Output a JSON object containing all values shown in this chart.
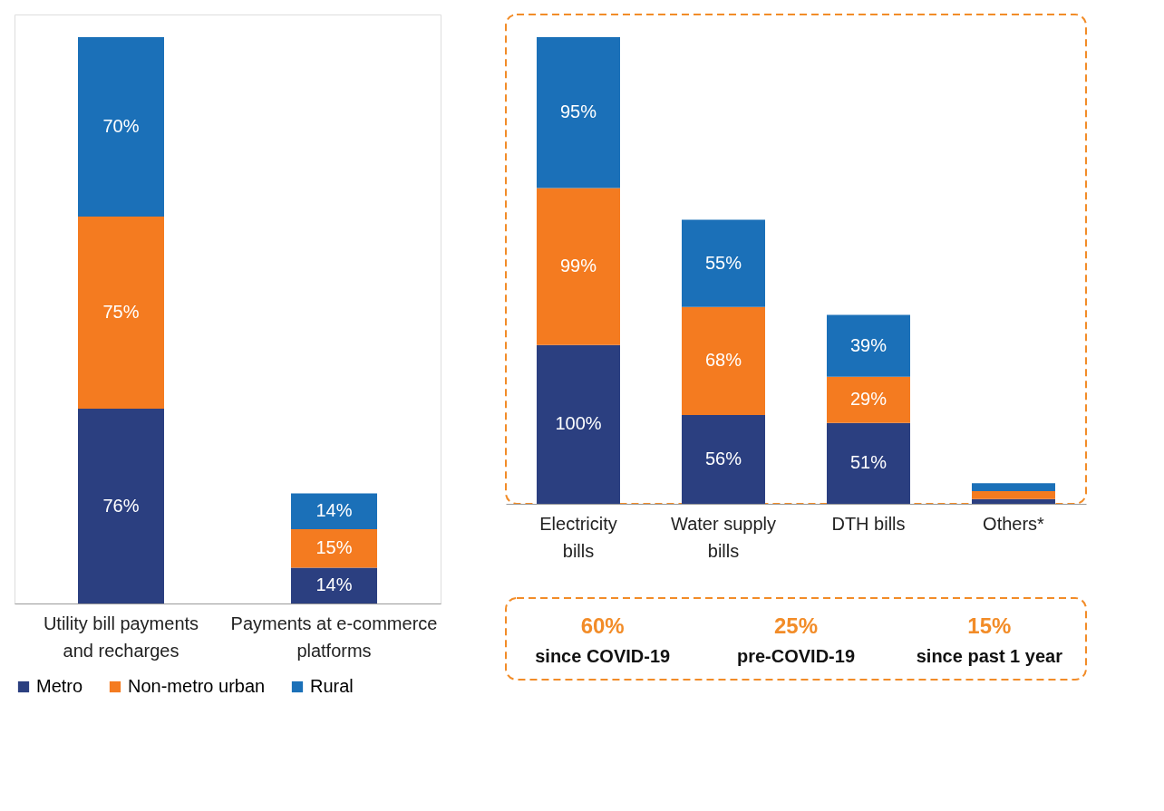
{
  "chart_data": [
    {
      "type": "bar",
      "stacked": true,
      "legend": "bottom",
      "categories": [
        "Utility bill payments and recharges",
        "Payments at e-commerce platforms"
      ],
      "series": [
        {
          "name": "Metro",
          "color": "#2b3f80",
          "values": [
            76,
            14
          ],
          "value_labels": [
            "76%",
            "14%"
          ]
        },
        {
          "name": "Non-metro urban",
          "color": "#f47b20",
          "values": [
            75,
            15
          ],
          "value_labels": [
            "75%",
            "15%"
          ]
        },
        {
          "name": "Rural",
          "color": "#1b70b8",
          "values": [
            70,
            14
          ],
          "value_labels": [
            "70%",
            "14%"
          ]
        }
      ]
    },
    {
      "type": "bar",
      "stacked": true,
      "categories": [
        "Electricity bills",
        "Water supply bills",
        "DTH bills",
        "Others*"
      ],
      "series": [
        {
          "color": "#2b3f80",
          "values": [
            100,
            56,
            51,
            3
          ],
          "value_labels": [
            "100%",
            "56%",
            "51%",
            null
          ]
        },
        {
          "color": "#f47b20",
          "values": [
            99,
            68,
            29,
            5
          ],
          "value_labels": [
            "99%",
            "68%",
            "29%",
            null
          ]
        },
        {
          "color": "#1b70b8",
          "values": [
            95,
            55,
            39,
            5
          ],
          "value_labels": [
            "95%",
            "55%",
            "39%",
            null
          ]
        }
      ]
    },
    {
      "type": "other",
      "annotations": [
        "60%",
        "since COVID-19",
        "25%",
        "pre-COVID-19",
        "15%",
        "since past 1 year"
      ]
    }
  ]
}
